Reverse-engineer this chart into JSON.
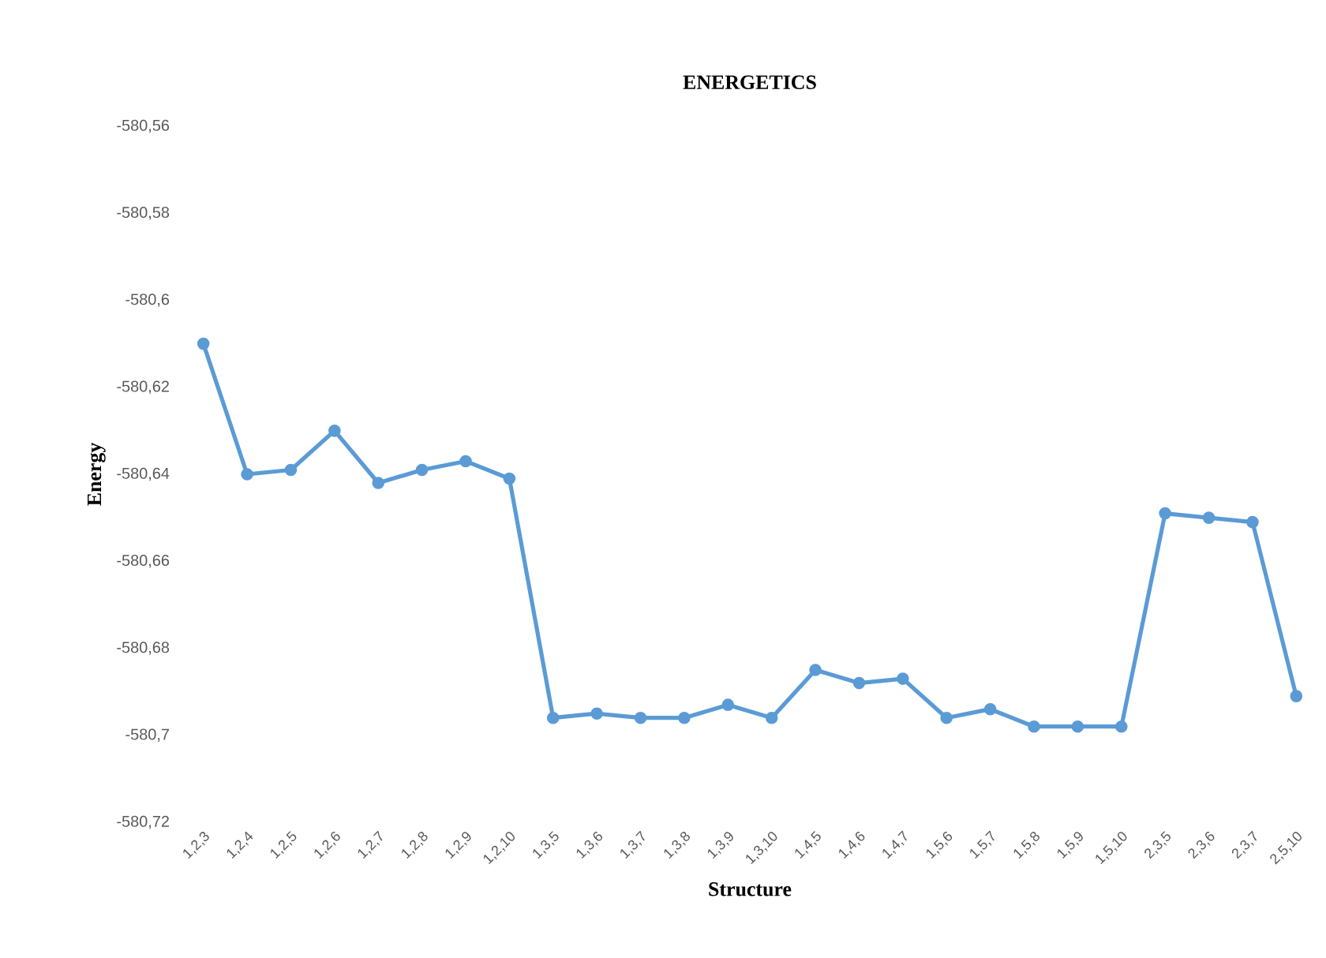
{
  "chart_data": {
    "type": "line",
    "title": "ENERGETICS",
    "xlabel": "Structure",
    "ylabel": "Energy",
    "categories": [
      "1,2,3",
      "1,2,4",
      "1,2,5",
      "1,2,6",
      "1,2,7",
      "1,2,8",
      "1,2,9",
      "1,2,10",
      "1,3,5",
      "1,3,6",
      "1,3,7",
      "1,3,8",
      "1,3,9",
      "1,3,10",
      "1,4,5",
      "1,4,6",
      "1,4,7",
      "1,5,6",
      "1,5,7",
      "1,5,8",
      "1,5,9",
      "1,5,10",
      "2,3,5",
      "2,3,6",
      "2,3,7",
      "2,5,10"
    ],
    "series": [
      {
        "color": "#5b9bd5",
        "values": [
          -580.61,
          -580.64,
          -580.639,
          -580.63,
          -580.642,
          -580.639,
          -580.637,
          -580.641,
          -580.696,
          -580.695,
          -580.696,
          -580.696,
          -580.693,
          -580.696,
          -580.685,
          -580.688,
          -580.687,
          -580.696,
          -580.694,
          -580.698,
          -580.698,
          -580.698,
          -580.649,
          -580.65,
          -580.651,
          -580.691
        ]
      }
    ],
    "ylim": [
      -580.72,
      -580.56
    ],
    "yticks": [
      {
        "value": -580.72,
        "label": "-580,72"
      },
      {
        "value": -580.7,
        "label": "-580,7"
      },
      {
        "value": -580.68,
        "label": "-580,68"
      },
      {
        "value": -580.66,
        "label": "-580,66"
      },
      {
        "value": -580.64,
        "label": "-580,64"
      },
      {
        "value": -580.62,
        "label": "-580,62"
      },
      {
        "value": -580.6,
        "label": "-580,6"
      },
      {
        "value": -580.58,
        "label": "-580,58"
      },
      {
        "value": -580.56,
        "label": "-580,56"
      }
    ],
    "marker": "circle",
    "line_style": "solid"
  }
}
